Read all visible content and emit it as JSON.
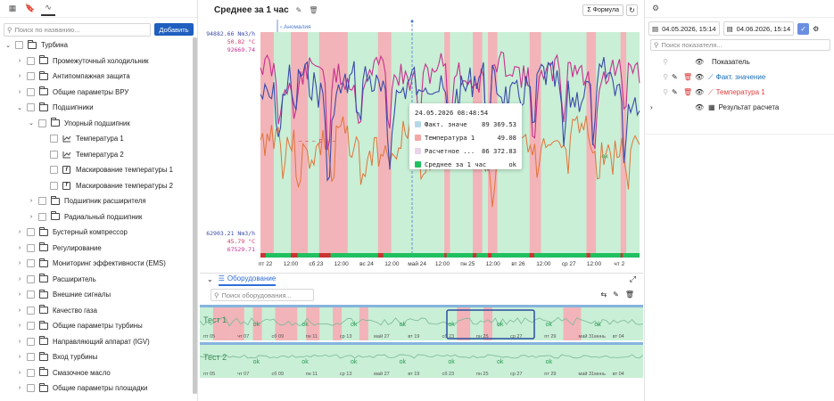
{
  "left": {
    "search_placeholder": "Поиск по названию...",
    "add_label": "Добавить",
    "tree": [
      {
        "label": "Турбина",
        "level": 0,
        "arrow": "down",
        "icon": "folder"
      },
      {
        "label": "Промежуточный холодильник",
        "level": 1,
        "arrow": "right",
        "icon": "folder"
      },
      {
        "label": "Антипомпажная защита",
        "level": 1,
        "arrow": "right",
        "icon": "folder"
      },
      {
        "label": "Общие параметры ВРУ",
        "level": 1,
        "arrow": "right",
        "icon": "folder"
      },
      {
        "label": "Подшипники",
        "level": 1,
        "arrow": "down",
        "icon": "folder"
      },
      {
        "label": "Упорный подшипник",
        "level": 2,
        "arrow": "down",
        "icon": "folder"
      },
      {
        "label": "Температура 1",
        "level": 3,
        "arrow": "",
        "icon": "chart"
      },
      {
        "label": "Температура 2",
        "level": 3,
        "arrow": "",
        "icon": "chart"
      },
      {
        "label": "Маскирование температуры 1",
        "level": 3,
        "arrow": "",
        "icon": "formula"
      },
      {
        "label": "Маскирование температуры 2",
        "level": 3,
        "arrow": "",
        "icon": "formula"
      },
      {
        "label": "Подшипник расширителя",
        "level": 2,
        "arrow": "right",
        "icon": "folder"
      },
      {
        "label": "Радиальный подшипник",
        "level": 2,
        "arrow": "right",
        "icon": "folder"
      },
      {
        "label": "Бустерный компрессор",
        "level": 1,
        "arrow": "right",
        "icon": "folder"
      },
      {
        "label": "Регулирование",
        "level": 1,
        "arrow": "right",
        "icon": "folder"
      },
      {
        "label": "Мониторинг эффективности (EMS)",
        "level": 1,
        "arrow": "right",
        "icon": "folder"
      },
      {
        "label": "Расширитель",
        "level": 1,
        "arrow": "right",
        "icon": "folder"
      },
      {
        "label": "Внешние сигналы",
        "level": 1,
        "arrow": "right",
        "icon": "folder"
      },
      {
        "label": "Качество газа",
        "level": 1,
        "arrow": "right",
        "icon": "folder"
      },
      {
        "label": "Общие параметры турбины",
        "level": 1,
        "arrow": "right",
        "icon": "folder"
      },
      {
        "label": "Направляющий аппарат (IGV)",
        "level": 1,
        "arrow": "right",
        "icon": "folder"
      },
      {
        "label": "Вход турбины",
        "level": 1,
        "arrow": "right",
        "icon": "folder"
      },
      {
        "label": "Смазочное масло",
        "level": 1,
        "arrow": "right",
        "icon": "folder"
      },
      {
        "label": "Общие параметры площадки",
        "level": 1,
        "arrow": "right",
        "icon": "folder"
      }
    ]
  },
  "center": {
    "title": "Среднее за 1 час",
    "formula_label": "Формула",
    "anomaly_label": "‹ Аномалия",
    "ymax": {
      "v1": "94882.66 Nm3/h",
      "v2": "50.82 °C",
      "v3": "92669.74"
    },
    "ymin": {
      "v1": "62903.21 Nm3/h",
      "v2": "45.79 °C",
      "v3": "67529.71"
    },
    "colors": {
      "fact": "#3b4aa8",
      "temp": "#e0743a",
      "calc": "#c8308f",
      "ok": "#20c060",
      "bad": "#e74c4c",
      "okband": "#c9efd6",
      "badband": "#f2b4b8"
    },
    "x_ticks": [
      "пт 22",
      "12:00",
      "сб 23",
      "12:00",
      "вс 24",
      "12:00",
      "май 24",
      "12:00",
      "пн 25",
      "12:00",
      "вт 26",
      "12:00",
      "ср 27",
      "12:00",
      "чт 2"
    ],
    "band_ok": "ok",
    "band_bad_marks": [
      "p",
      "p",
      "p",
      "p",
      "p",
      "p"
    ],
    "tooltip": {
      "time": "24.05.2026 08:48:54",
      "rows": [
        {
          "name": "Факт. значе",
          "value": "89 369.53",
          "color": "#b5d7e8"
        },
        {
          "name": "Температура 1",
          "value": "49.08",
          "color": "#f2a8a4"
        },
        {
          "name": "Расчетное ...",
          "value": "86 372.83",
          "color": "#ead2e8"
        },
        {
          "name": "Среднее за 1 час",
          "value": "ok",
          "color": "#20c060"
        }
      ]
    },
    "equipment_tab": "Оборудование",
    "equipment_search_placeholder": "Поиск оборудования...",
    "tracks": [
      {
        "name": "Тест 1",
        "ticks": [
          "пт 05",
          "чт 07",
          "сб 09",
          "пн 11",
          "ср 13",
          "май 27",
          "вт 19",
          "сб 23",
          "пн 25",
          "ср 27",
          "пт 29",
          "май 31мннь",
          "вт 04"
        ],
        "labels": [
          "ok",
          "ok",
          "ok",
          "ok",
          "ok",
          "ok",
          "ok",
          "ok"
        ]
      },
      {
        "name": "Тест 2",
        "ticks": [
          "пт 05",
          "чт 07",
          "сб 09",
          "пн 11",
          "ср 13",
          "май 27",
          "вт 19",
          "сб 23",
          "пн 25",
          "ср 27",
          "пт 29",
          "май 31мннь",
          "вт 04"
        ],
        "labels": [
          "ok",
          "ok",
          "ok",
          "ok",
          "ok",
          "ok",
          "ok"
        ]
      }
    ]
  },
  "right": {
    "date_from": "04.05.2026, 15:14",
    "date_to": "04.06.2026, 15:14",
    "search_placeholder": "Поиск показателя...",
    "indicators": [
      {
        "label": "Показатель",
        "color": "#222"
      },
      {
        "label": "Факт. значение",
        "color": "#1d6fb8"
      },
      {
        "label": "Температура 1",
        "color": "#e04040"
      },
      {
        "label": "Результат расчета",
        "color": "#222"
      }
    ]
  }
}
